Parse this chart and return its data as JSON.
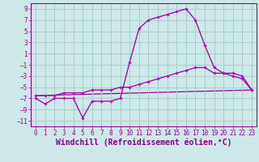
{
  "bg_color": "#cce8e8",
  "grid_color": "#aacccc",
  "line_color": "#990099",
  "marker_color": "#cc00cc",
  "xlabel": "Windchill (Refroidissement éolien,°C)",
  "xlabel_color": "#880088",
  "ylim": [
    -12,
    10
  ],
  "xlim": [
    -0.5,
    23.5
  ],
  "yticks": [
    -11,
    -9,
    -7,
    -5,
    -3,
    -1,
    1,
    3,
    5,
    7,
    9
  ],
  "xticks": [
    0,
    1,
    2,
    3,
    4,
    5,
    6,
    7,
    8,
    9,
    10,
    11,
    12,
    13,
    14,
    15,
    16,
    17,
    18,
    19,
    20,
    21,
    22,
    23
  ],
  "series1_x": [
    0,
    1,
    2,
    3,
    4,
    5,
    6,
    7,
    8,
    9,
    10,
    11,
    12,
    13,
    14,
    15,
    16,
    17,
    18,
    19,
    20,
    21,
    22,
    23
  ],
  "series1_y": [
    -7.0,
    -8.0,
    -7.0,
    -7.0,
    -7.0,
    -10.5,
    -7.5,
    -7.5,
    -7.5,
    -7.0,
    -0.5,
    5.5,
    7.0,
    7.5,
    8.0,
    8.5,
    9.0,
    7.0,
    2.5,
    -1.5,
    -2.5,
    -3.0,
    -3.5,
    -5.5
  ],
  "series2_x": [
    0,
    1,
    2,
    3,
    4,
    5,
    6,
    7,
    8,
    9,
    10,
    11,
    12,
    13,
    14,
    15,
    16,
    17,
    18,
    19,
    20,
    21,
    22,
    23
  ],
  "series2_y": [
    -6.5,
    -6.5,
    -6.5,
    -6.0,
    -6.0,
    -6.0,
    -5.5,
    -5.5,
    -5.5,
    -5.0,
    -5.0,
    -4.5,
    -4.0,
    -3.5,
    -3.0,
    -2.5,
    -2.0,
    -1.5,
    -1.5,
    -2.5,
    -2.5,
    -2.5,
    -3.0,
    -5.5
  ],
  "series3_x": [
    0,
    23
  ],
  "series3_y": [
    -6.5,
    -5.5
  ],
  "font_family": "monospace",
  "tick_fontsize": 5.5,
  "xlabel_fontsize": 7.0
}
